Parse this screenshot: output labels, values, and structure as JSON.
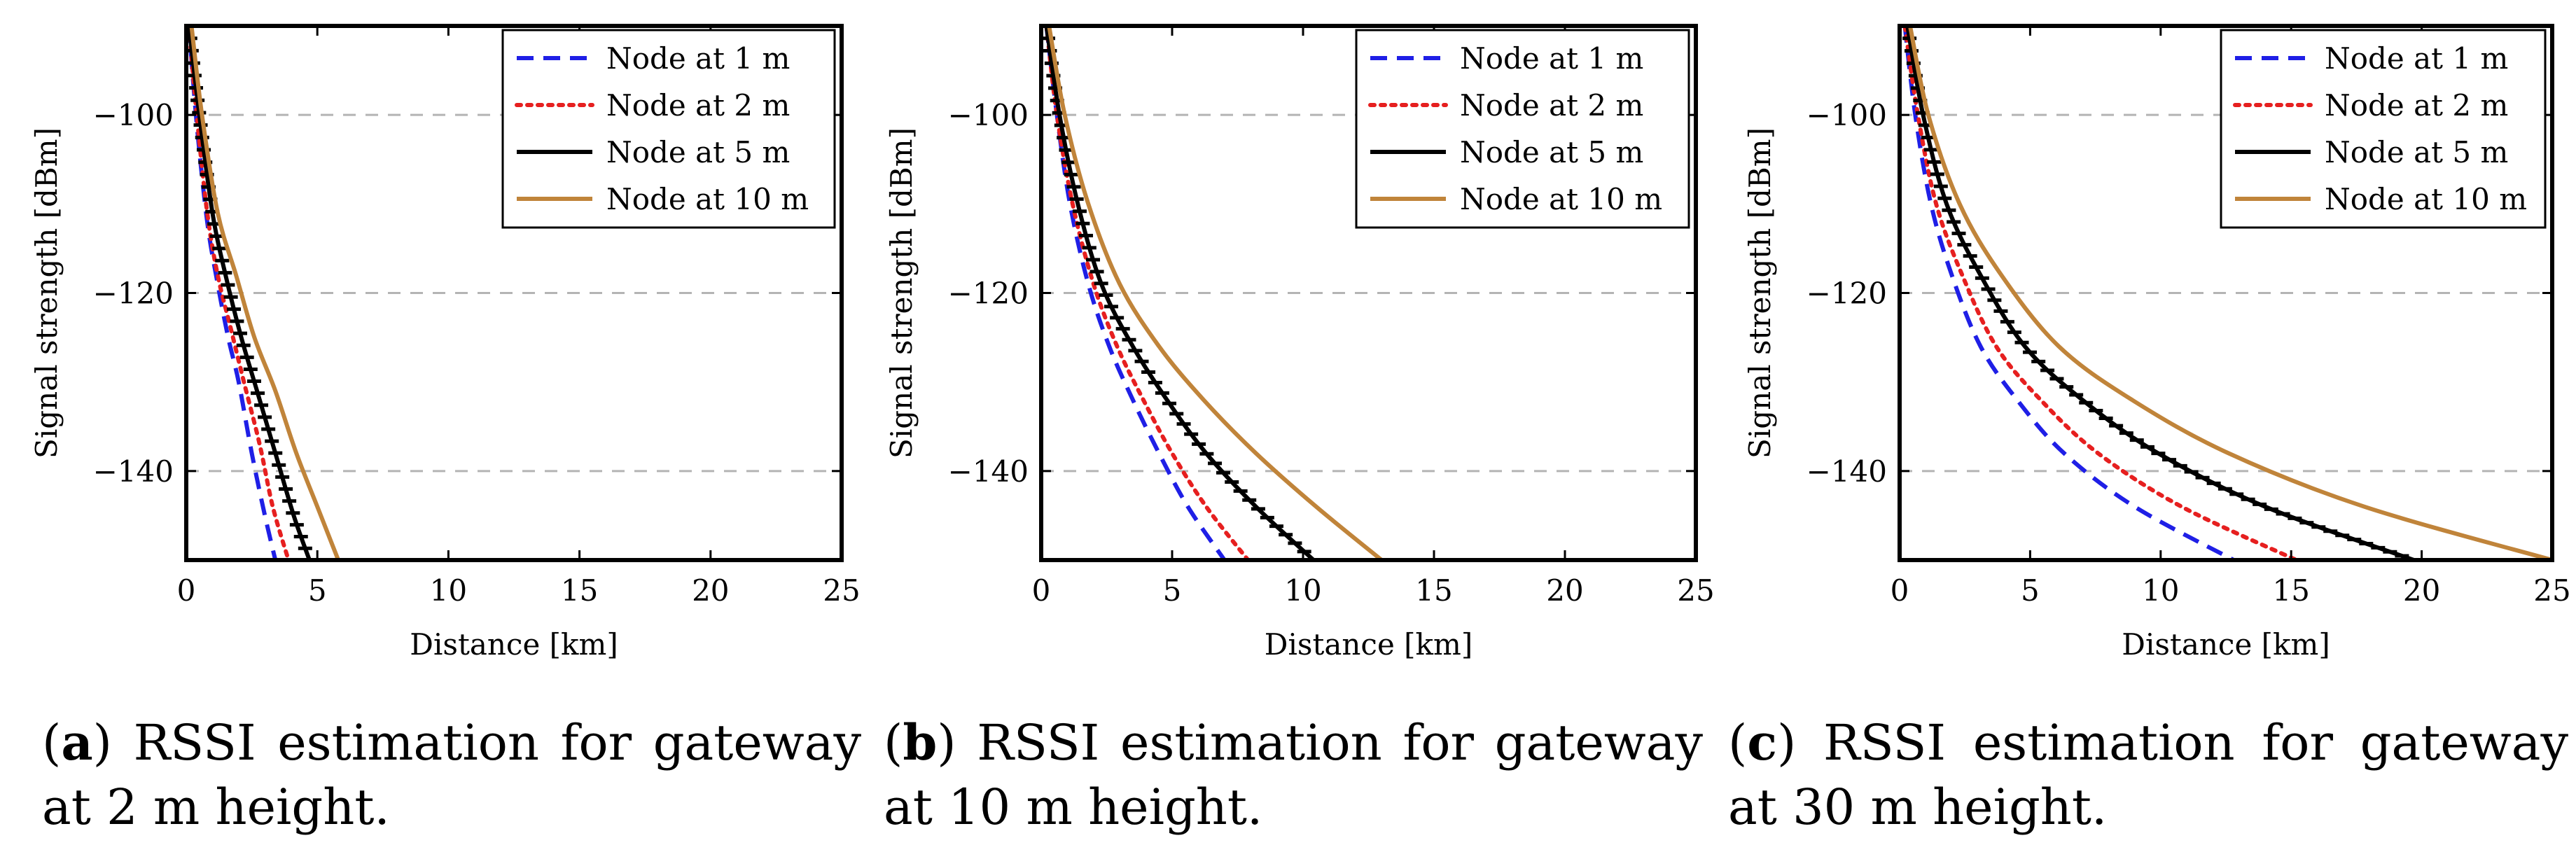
{
  "chart_data": [
    {
      "type": "line",
      "xlabel": "Distance [km]",
      "ylabel": "Signal strength [dBm]",
      "xlim": [
        0,
        25
      ],
      "ylim": [
        -150,
        -90
      ],
      "xticks": [
        0,
        5,
        10,
        15,
        20,
        25
      ],
      "yticks": [
        -140,
        -120,
        -100
      ],
      "ytick_labels": [
        "−140",
        "−120",
        "−100"
      ],
      "grid": "horizontal dashed",
      "legend_position": "top-right",
      "series": [
        {
          "name": "Node at 1 m",
          "style": "dashed",
          "color": "#1f1fe6",
          "x": [
            0.1,
            0.4,
            0.8,
            1.2,
            1.6,
            2.0,
            2.5,
            3.0,
            3.4
          ],
          "y": [
            -90,
            -101,
            -112,
            -119,
            -125,
            -130,
            -138,
            -145,
            -150
          ]
        },
        {
          "name": "Node at 2 m",
          "style": "dotted",
          "color": "#e61f1f",
          "x": [
            0.1,
            0.4,
            0.8,
            1.2,
            1.7,
            2.2,
            2.8,
            3.3,
            3.9
          ],
          "y": [
            -90,
            -100,
            -111,
            -118,
            -124,
            -130,
            -137,
            -144,
            -150
          ]
        },
        {
          "name": "Node at 5 m",
          "style": "solid-ticked",
          "color": "#000000",
          "x": [
            0.1,
            0.5,
            1.0,
            1.5,
            2.1,
            2.7,
            3.4,
            4.1,
            4.7
          ],
          "y": [
            -90,
            -100,
            -111,
            -118,
            -125,
            -131,
            -138,
            -145,
            -150
          ]
        },
        {
          "name": "Node at 10 m",
          "style": "solid",
          "color": "#c0843a",
          "x": [
            0.2,
            0.6,
            1.2,
            1.9,
            2.6,
            3.4,
            4.2,
            5.0,
            5.8
          ],
          "y": [
            -90,
            -100,
            -111,
            -118,
            -125,
            -131,
            -138,
            -144,
            -150
          ]
        }
      ]
    },
    {
      "type": "line",
      "xlabel": "Distance [km]",
      "ylabel": "Signal strength [dBm]",
      "xlim": [
        0,
        25
      ],
      "ylim": [
        -150,
        -90
      ],
      "xticks": [
        0,
        5,
        10,
        15,
        20,
        25
      ],
      "yticks": [
        -140,
        -120,
        -100
      ],
      "ytick_labels": [
        "−140",
        "−120",
        "−100"
      ],
      "grid": "horizontal dashed",
      "legend_position": "top-right",
      "series": [
        {
          "name": "Node at 1 m",
          "style": "dashed",
          "color": "#1f1fe6",
          "x": [
            0.2,
            0.6,
            1.1,
            1.8,
            2.6,
            3.5,
            4.5,
            5.6,
            7.0
          ],
          "y": [
            -90,
            -100,
            -110,
            -119,
            -126,
            -132,
            -138,
            -144,
            -150
          ]
        },
        {
          "name": "Node at 2 m",
          "style": "dotted",
          "color": "#e61f1f",
          "x": [
            0.2,
            0.6,
            1.2,
            2.0,
            2.9,
            3.9,
            5.0,
            6.3,
            7.9
          ],
          "y": [
            -90,
            -100,
            -110,
            -119,
            -126,
            -132,
            -138,
            -144,
            -150
          ]
        },
        {
          "name": "Node at 5 m",
          "style": "solid-ticked",
          "color": "#000000",
          "x": [
            0.2,
            0.7,
            1.4,
            2.3,
            3.5,
            4.8,
            6.3,
            8.2,
            10.4
          ],
          "y": [
            -90,
            -100,
            -110,
            -119,
            -126,
            -132,
            -138,
            -144,
            -150
          ]
        },
        {
          "name": "Node at 10 m",
          "style": "solid",
          "color": "#c0843a",
          "x": [
            0.3,
            0.9,
            1.8,
            3.0,
            4.5,
            6.2,
            8.2,
            10.5,
            13.0
          ],
          "y": [
            -90,
            -100,
            -110,
            -119,
            -126,
            -132,
            -138,
            -144,
            -150
          ]
        }
      ]
    },
    {
      "type": "line",
      "xlabel": "Distance [km]",
      "ylabel": "Signal strength [dBm]",
      "xlim": [
        0,
        25
      ],
      "ylim": [
        -150,
        -90
      ],
      "xticks": [
        0,
        5,
        10,
        15,
        20,
        25
      ],
      "yticks": [
        -140,
        -120,
        -100
      ],
      "ytick_labels": [
        "−140",
        "−120",
        "−100"
      ],
      "grid": "horizontal dashed",
      "legend_position": "top-right",
      "series": [
        {
          "name": "Node at 1 m",
          "style": "dashed",
          "color": "#1f1fe6",
          "x": [
            0.2,
            0.6,
            1.2,
            2.0,
            3.1,
            4.5,
            6.3,
            9.0,
            12.8
          ],
          "y": [
            -90,
            -100,
            -110,
            -118,
            -126,
            -132,
            -138,
            -144,
            -150
          ]
        },
        {
          "name": "Node at 2 m",
          "style": "dotted",
          "color": "#e61f1f",
          "x": [
            0.2,
            0.7,
            1.4,
            2.4,
            3.7,
            5.4,
            7.6,
            10.8,
            15.2
          ],
          "y": [
            -90,
            -100,
            -110,
            -118,
            -126,
            -132,
            -138,
            -144,
            -150
          ]
        },
        {
          "name": "Node at 5 m",
          "style": "solid-ticked",
          "color": "#000000",
          "x": [
            0.3,
            0.9,
            1.8,
            3.1,
            4.8,
            7.0,
            9.9,
            14.0,
            19.7
          ],
          "y": [
            -90,
            -100,
            -110,
            -118,
            -126,
            -132,
            -138,
            -144,
            -150
          ]
        },
        {
          "name": "Node at 10 m",
          "style": "solid",
          "color": "#c0843a",
          "x": [
            0.4,
            1.1,
            2.3,
            3.9,
            6.1,
            8.9,
            12.6,
            17.8,
            25.0
          ],
          "y": [
            -90,
            -100,
            -110,
            -118,
            -126,
            -132,
            -138,
            -144,
            -150
          ]
        }
      ]
    }
  ],
  "captions": [
    {
      "tag": "a",
      "text": " RSSI estimation for gateway at 2 m height."
    },
    {
      "tag": "b",
      "text": " RSSI estimation for gateway at 10 m height."
    },
    {
      "tag": "c",
      "text": " RSSI estimation for gateway at 30 m height."
    }
  ]
}
